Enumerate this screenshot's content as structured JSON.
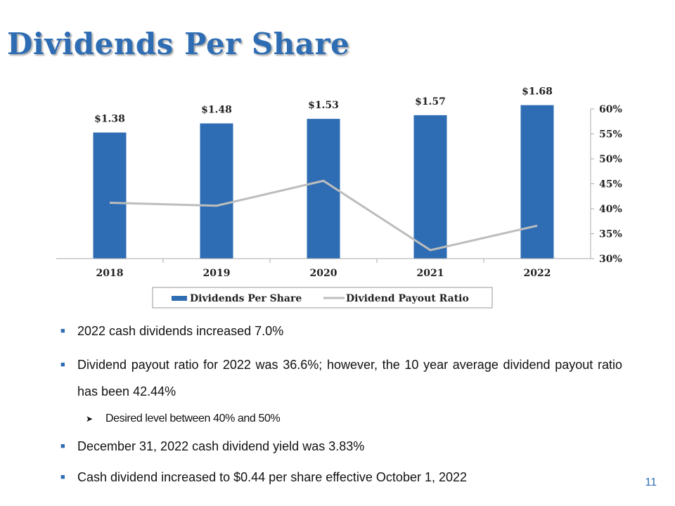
{
  "slide": {
    "title": "Dividends Per Share",
    "page_number": "11"
  },
  "chart_data": {
    "type": "bar",
    "categories": [
      "2018",
      "2019",
      "2020",
      "2021",
      "2022"
    ],
    "series": [
      {
        "name": "Dividends Per Share",
        "type": "bar",
        "values": [
          1.38,
          1.48,
          1.53,
          1.57,
          1.68
        ],
        "labels": [
          "$1.38",
          "$1.48",
          "$1.53",
          "$1.57",
          "$1.68"
        ],
        "color": "#2e6db4"
      },
      {
        "name": "Dividend Payout Ratio",
        "type": "line",
        "axis": "secondary",
        "values": [
          41.2,
          40.6,
          45.6,
          31.7,
          36.6
        ],
        "color": "#bdbdbd"
      }
    ],
    "y2_ticks": [
      "30%",
      "35%",
      "40%",
      "45%",
      "50%",
      "55%",
      "60%"
    ],
    "y2lim": [
      30,
      60
    ],
    "legend_position": "bottom",
    "grid": false
  },
  "bullets": [
    {
      "text": "2022 cash dividends increased 7.0%"
    },
    {
      "text": "Dividend payout ratio for 2022 was 36.6%; however, the 10 year average dividend payout ratio has been 42.44%"
    },
    {
      "text": "Desired level between 40% and 50%"
    },
    {
      "text": "December 31, 2022 cash dividend yield was 3.83%"
    },
    {
      "text": "Cash dividend increased to $0.44 per share effective October 1, 2022"
    }
  ],
  "icons": {
    "bullet": "square-bullet-icon",
    "sub_bullet": "arrow-bullet-icon"
  }
}
